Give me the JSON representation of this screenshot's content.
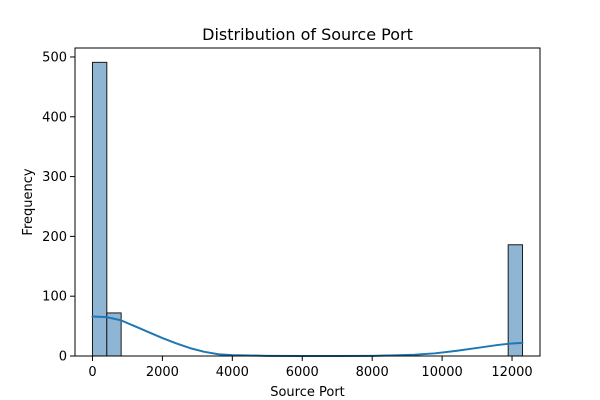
{
  "chart_data": {
    "type": "bar",
    "title": "Distribution of Source Port",
    "xlabel": "Source Port",
    "ylabel": "Frequency",
    "xlim": [
      -500,
      12800
    ],
    "ylim": [
      0,
      515
    ],
    "xticks": [
      0,
      2000,
      4000,
      6000,
      8000,
      10000,
      12000
    ],
    "yticks": [
      0,
      100,
      200,
      300,
      400,
      500
    ],
    "bin_width": 410,
    "bins": [
      {
        "start": 0,
        "end": 410,
        "count": 491
      },
      {
        "start": 410,
        "end": 820,
        "count": 72
      },
      {
        "start": 11890,
        "end": 12300,
        "count": 186
      }
    ],
    "kde": {
      "x": [
        0,
        400,
        800,
        1200,
        1600,
        2000,
        2400,
        2800,
        3200,
        3600,
        4000,
        5000,
        6000,
        7000,
        8000,
        8600,
        9200,
        9800,
        10400,
        11000,
        11600,
        12000,
        12300
      ],
      "y": [
        66,
        65,
        60,
        50,
        40,
        30,
        21,
        13,
        7,
        3,
        1.5,
        0.3,
        0,
        0,
        0.3,
        1,
        2,
        4.5,
        8.5,
        13.5,
        18.5,
        21,
        22
      ]
    },
    "colors": {
      "bar_fill": "#8fb5d5",
      "bar_edge": "#1a1a1a",
      "kde_line": "#1f77b4"
    },
    "grid": false,
    "legend": "none"
  }
}
